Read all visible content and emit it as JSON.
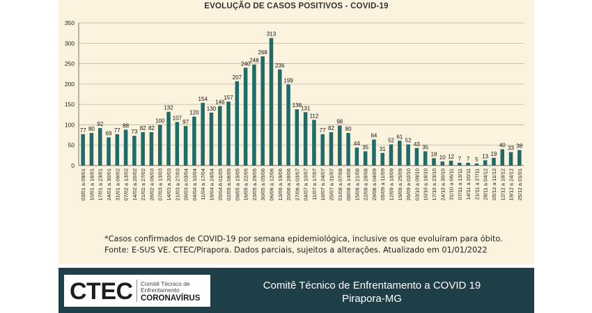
{
  "chart_data": {
    "type": "bar",
    "title": "EVOLUÇÃO DE CASOS POSITIVOS -  COVID-19",
    "xlabel": "",
    "ylabel": "",
    "ylim": [
      0,
      350
    ],
    "yticks": [
      0,
      50,
      100,
      150,
      200,
      250,
      300,
      350
    ],
    "grid": true,
    "bar_color": "#1d6b6b",
    "categories": [
      "03/01 a 09/01",
      "10/01 a 16/01",
      "17/01 a 23/01",
      "24/01 a 30/01",
      "31/01 a 06/02",
      "07/02 a 13/02",
      "14/02 a 20/02",
      "21/02 a 27/02",
      "28/02 a 06/03",
      "07/03 a 13/03",
      "14/03 a 20/03",
      "21/03 a 27/03",
      "28/03 a 03/04",
      "04/04 a 10/04",
      "11/04 a 17/04",
      "18/04 a 24/04",
      "25/04 A 01/05",
      "02/05 a 08/05",
      "09/05 a 15/05",
      "16/05 a 22/05",
      "23/05 a 29/05",
      "30/05 a 05/06",
      "06/06 a 12/06",
      "13/06 a 19/06",
      "20/06 a 26/06",
      "27/06 a 03/07",
      "04/07 a 10/07",
      "11/07 a 17/07",
      "18/07 a 24/07",
      "25/07 a 31/07",
      "01/08 a 07/08",
      "08/08 a 14/08",
      "15/08 a 21/08",
      "22/08 a 28/08",
      "29/08 a 04/09",
      "05/09 a 11/09",
      "12/09 a 18/09",
      "19/09 a 25/09",
      "26/09 a 02/10",
      "03/10 a 09/10",
      "10/10 a 16/10",
      "17/10 a 23/10",
      "24/10 a 30/10",
      "31/10 a 06/11",
      "07/11 a 13/11",
      "14/11 a 20/11",
      "21/11 a 27/11",
      "28/11 a 04/12",
      "05/12 a 11/12",
      "12/12 a 18/12",
      "19/12 a 24/12",
      "25/12 a 01/01"
    ],
    "values": [
      77,
      80,
      92,
      69,
      77,
      88,
      73,
      82,
      82,
      100,
      132,
      107,
      97,
      120,
      154,
      130,
      146,
      157,
      207,
      240,
      248,
      268,
      313,
      236,
      199,
      138,
      131,
      112,
      77,
      82,
      98,
      80,
      44,
      35,
      64,
      31,
      52,
      61,
      52,
      43,
      35,
      18,
      10,
      12,
      7,
      7,
      5,
      13,
      19,
      40,
      33,
      38
    ]
  },
  "notes": {
    "line1": "*Casos confirmados de COVID-19 por semana epidemiológica, inclusive os que evoluíram para óbito.",
    "line2": "Fonte: E-SUS VE. CTEC/Pirapora. Dados parciais, sujeitos a alterações. Atualizado em 01/01/2022"
  },
  "footer": {
    "logo_main": "CTEC",
    "logo_sub": "Comitê Técnico de Enfrentamento",
    "logo_corona": "CORONAVÍRUS",
    "line1": "Comitê Técnico de Enfrentamento a COVID 19",
    "line2": "Pirapora-MG"
  },
  "colors": {
    "panel_background": "#fbf3dd",
    "bar": "#1d6b6b",
    "footer_background": "#1f3f48"
  }
}
